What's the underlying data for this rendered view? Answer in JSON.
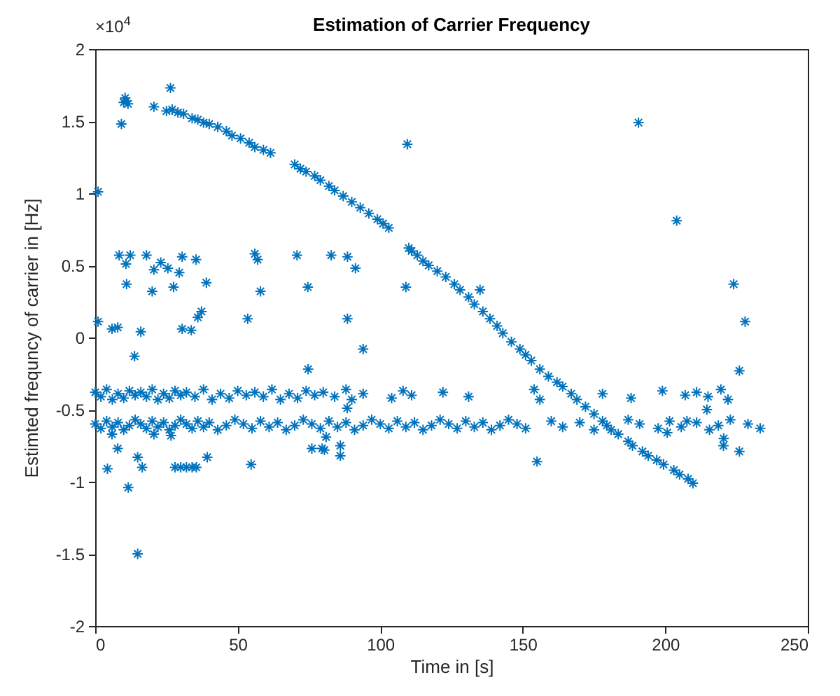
{
  "chart_data": {
    "type": "scatter",
    "title": "Estimation of Carrier Frequency",
    "xlabel": "Time in [s]",
    "ylabel": "Estimted frequncy of carrier in [Hz]",
    "annotations": [
      "×10$^{4}$"
    ],
    "xlim": [
      0,
      250
    ],
    "xticks": [
      0,
      50,
      100,
      150,
      200,
      250
    ],
    "ylim": [
      -2,
      2
    ],
    "yticks": [
      -2,
      -1.5,
      -1,
      -0.5,
      0,
      0.5,
      1,
      1.5,
      2
    ],
    "marker": "cross",
    "grid": false,
    "series": [
      {
        "color": "#0072bd",
        "x": [
          9.2,
          10,
          10.5,
          11,
          11.5,
          26.4,
          20.6,
          25,
          27,
          29,
          31,
          34,
          36,
          38,
          40,
          43,
          46,
          48,
          51,
          54,
          56,
          59,
          61.5,
          70,
          72,
          74,
          77,
          79,
          82,
          84,
          87,
          90,
          93,
          96,
          99,
          101,
          103,
          110,
          111,
          113,
          115,
          117,
          120,
          123,
          126,
          128,
          131,
          133,
          136,
          138.5,
          141,
          143,
          146,
          149,
          151,
          153,
          156,
          159,
          162,
          164,
          167,
          169,
          172,
          175,
          178,
          181,
          183.5,
          187,
          188.5,
          192,
          194,
          197,
          199.4,
          203,
          205,
          208,
          209.7
        ],
        "values": [
          1.48,
          1.63,
          1.66,
          1.64,
          1.62,
          1.73,
          1.6,
          1.57,
          1.58,
          1.56,
          1.55,
          1.52,
          1.51,
          1.49,
          1.48,
          1.46,
          1.43,
          1.4,
          1.38,
          1.35,
          1.32,
          1.3,
          1.28,
          1.2,
          1.17,
          1.15,
          1.12,
          1.09,
          1.05,
          1.02,
          0.98,
          0.94,
          0.9,
          0.86,
          0.82,
          0.79,
          0.76,
          0.62,
          0.6,
          0.57,
          0.53,
          0.5,
          0.46,
          0.42,
          0.37,
          0.33,
          0.28,
          0.23,
          0.18,
          0.13,
          0.08,
          0.03,
          -0.03,
          -0.08,
          -0.12,
          -0.16,
          -0.22,
          -0.27,
          -0.31,
          -0.34,
          -0.39,
          -0.43,
          -0.48,
          -0.53,
          -0.58,
          -0.64,
          -0.67,
          -0.72,
          -0.75,
          -0.79,
          -0.82,
          -0.85,
          -0.88,
          -0.92,
          -0.95,
          -0.98,
          -1.01
        ]
      },
      {
        "color": "#0072bd",
        "x": [
          0,
          2,
          4,
          6,
          8,
          10,
          12,
          14,
          16,
          18,
          20,
          22,
          24,
          26,
          28,
          30,
          32,
          35,
          38,
          41,
          44,
          47,
          50,
          53,
          56,
          59,
          62,
          65,
          68,
          71,
          74,
          77,
          80,
          84,
          88,
          90,
          94,
          104,
          108,
          111,
          122,
          131,
          154,
          156,
          178,
          188,
          199,
          207,
          211,
          215,
          219.5,
          222
        ],
        "values": [
          -0.38,
          -0.41,
          -0.36,
          -0.43,
          -0.39,
          -0.42,
          -0.37,
          -0.4,
          -0.38,
          -0.41,
          -0.36,
          -0.43,
          -0.39,
          -0.42,
          -0.37,
          -0.4,
          -0.38,
          -0.41,
          -0.36,
          -0.43,
          -0.39,
          -0.42,
          -0.37,
          -0.4,
          -0.38,
          -0.41,
          -0.36,
          -0.43,
          -0.39,
          -0.42,
          -0.37,
          -0.4,
          -0.38,
          -0.41,
          -0.36,
          -0.43,
          -0.39,
          -0.42,
          -0.37,
          -0.4,
          -0.38,
          -0.41,
          -0.36,
          -0.43,
          -0.39,
          -0.42,
          -0.37,
          -0.4,
          -0.38,
          -0.41,
          -0.36,
          -0.43
        ]
      },
      {
        "color": "#0072bd",
        "x": [
          0,
          2,
          4,
          6,
          8,
          10,
          12,
          14,
          16,
          18,
          20,
          22,
          24,
          26,
          28,
          30,
          32,
          34,
          36,
          38,
          40,
          43,
          46,
          49,
          52,
          55,
          58,
          61,
          64,
          67,
          70,
          73,
          76,
          79,
          82,
          85,
          88,
          91,
          94,
          97,
          100,
          103,
          106,
          109,
          112,
          115,
          118,
          121,
          124,
          127,
          130,
          133,
          136,
          139,
          142,
          145,
          148,
          151,
          160,
          164,
          170,
          175,
          179.5,
          187,
          191,
          197.5,
          201.5,
          205.6,
          211,
          215.5,
          218.6,
          222.8,
          229,
          233.3
        ],
        "values": [
          -0.6,
          -0.63,
          -0.58,
          -0.62,
          -0.59,
          -0.64,
          -0.61,
          -0.57,
          -0.6,
          -0.63,
          -0.58,
          -0.62,
          -0.59,
          -0.64,
          -0.61,
          -0.57,
          -0.6,
          -0.63,
          -0.58,
          -0.62,
          -0.59,
          -0.64,
          -0.61,
          -0.57,
          -0.6,
          -0.63,
          -0.58,
          -0.62,
          -0.59,
          -0.64,
          -0.61,
          -0.57,
          -0.6,
          -0.63,
          -0.58,
          -0.62,
          -0.59,
          -0.64,
          -0.61,
          -0.57,
          -0.6,
          -0.63,
          -0.58,
          -0.62,
          -0.59,
          -0.64,
          -0.61,
          -0.57,
          -0.6,
          -0.63,
          -0.58,
          -0.62,
          -0.59,
          -0.64,
          -0.61,
          -0.57,
          -0.6,
          -0.63,
          -0.58,
          -0.62,
          -0.59,
          -0.64,
          -0.61,
          -0.57,
          -0.6,
          -0.63,
          -0.58,
          -0.62,
          -0.59,
          -0.64,
          -0.61,
          -0.57,
          -0.6,
          -0.63
        ]
      },
      {
        "color": "#0072bd",
        "x": [
          1,
          8.4,
          12.3,
          10.8,
          18,
          23,
          25.5,
          20.6,
          29.5,
          30.5,
          35.4,
          11,
          20,
          27.5,
          39,
          56,
          57,
          58,
          70.8,
          74.6,
          82.8,
          88.5,
          91.3,
          109,
          135,
          1,
          5.9,
          7.9,
          16,
          30.5,
          33.7,
          36,
          37.3,
          53.5,
          88.5,
          94,
          109.5,
          190.6,
          204,
          224,
          228,
          226,
          13.8,
          74.7,
          4.3,
          7.9,
          14.9,
          16.5,
          11.6,
          14.9,
          28,
          30,
          32,
          34,
          35.5,
          39.3,
          54.7,
          76,
          79.6,
          5.9,
          20.6,
          26.6,
          81,
          80.4,
          86,
          86,
          88.4,
          155,
          200.7,
          207.6,
          214.6,
          220.5,
          220.4,
          226
        ],
        "values": [
          1.01,
          0.57,
          0.57,
          0.51,
          0.57,
          0.52,
          0.48,
          0.47,
          0.45,
          0.56,
          0.54,
          0.37,
          0.32,
          0.35,
          0.38,
          0.58,
          0.54,
          0.32,
          0.57,
          0.35,
          0.57,
          0.56,
          0.48,
          0.35,
          0.33,
          0.11,
          0.06,
          0.07,
          0.04,
          0.06,
          0.05,
          0.14,
          0.18,
          0.13,
          0.13,
          -0.08,
          1.34,
          1.49,
          0.81,
          0.37,
          0.11,
          -0.23,
          -0.13,
          -0.22,
          -0.91,
          -0.77,
          -0.83,
          -0.9,
          -1.04,
          -1.5,
          -0.9,
          -0.9,
          -0.9,
          -0.9,
          -0.9,
          -0.83,
          -0.88,
          -0.77,
          -0.77,
          -0.67,
          -0.67,
          -0.68,
          -0.69,
          -0.78,
          -0.75,
          -0.82,
          -0.49,
          -0.86,
          -0.66,
          -0.58,
          -0.5,
          -0.7,
          -0.75,
          -0.79
        ]
      }
    ]
  }
}
